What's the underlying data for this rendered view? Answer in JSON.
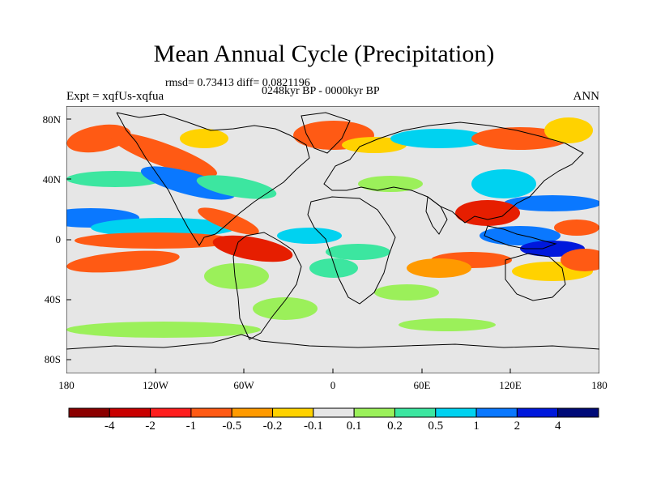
{
  "title": "Mean Annual Cycle (Precipitation)",
  "stats_line": "rmsd= 0.73413  diff= 0.0821196",
  "period_line": "0248kyr BP - 0000kyr BP",
  "experiment_label": "Expt = xqfUs-xqfua",
  "season_label": "ANN",
  "lat_ticks": [
    "80N",
    "40N",
    "0",
    "40S",
    "80S"
  ],
  "lon_ticks": [
    "180",
    "120W",
    "60W",
    "0",
    "60E",
    "120E",
    "180"
  ],
  "colorbar": {
    "levels": [
      "-4",
      "-2",
      "-1",
      "-0.5",
      "-0.2",
      "-0.1",
      "0.1",
      "0.2",
      "0.5",
      "1",
      "2",
      "4"
    ],
    "colors": [
      "#8b0000",
      "#c80000",
      "#ff1e1e",
      "#ff5a14",
      "#ff9a00",
      "#ffd200",
      "#e6e6e6",
      "#9bf05a",
      "#3ce6a0",
      "#00d2f0",
      "#0a78ff",
      "#0018dc",
      "#000a78"
    ]
  },
  "palette": {
    "neutral": "#e6e6e6",
    "strong_dry": "#e61e00",
    "dry": "#ff5a14",
    "mild_dry": "#ff9a00",
    "light_dry": "#ffd200",
    "light_wet": "#9bf05a",
    "wet": "#3ce6a0",
    "wetter": "#00d2f0",
    "very_wet": "#0a78ff",
    "extreme_wet": "#0018dc"
  }
}
